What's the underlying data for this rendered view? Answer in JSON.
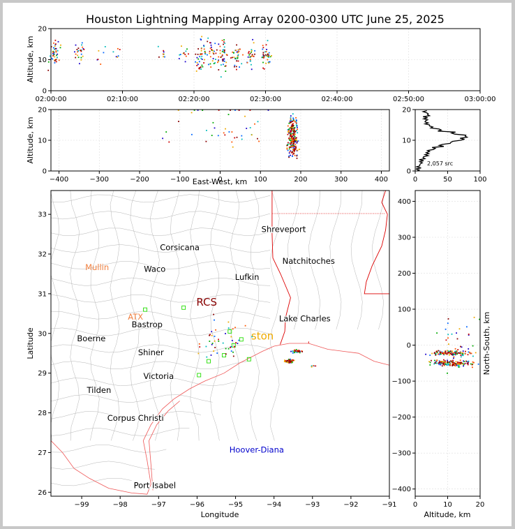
{
  "title": "Houston Lightning Mapping Array 0200-0300 UTC June 25, 2025",
  "colors": {
    "axis": "#000000",
    "grid": "#dddddd",
    "state_border": "#dd0000",
    "county": "#b4b4b4",
    "coast": "#ee5555",
    "site": "#22dd00",
    "series": [
      "#1a00cc",
      "#0066ff",
      "#00bbbb",
      "#00aa00",
      "#eeaa00",
      "#ff5500",
      "#cc0000",
      "#880000"
    ]
  },
  "chart_data": [
    {
      "id": "time_altitude",
      "type": "scatter",
      "ylabel": "Altitude, km",
      "ylim": [
        0,
        20
      ],
      "yticks": [
        "0",
        "10",
        "20"
      ],
      "xticks": [
        "02:00:00",
        "02:10:00",
        "02:20:00",
        "02:30:00",
        "02:40:00",
        "02:50:00",
        "03:00:00"
      ],
      "xlim_minutes": [
        0,
        60
      ],
      "clusters": [
        {
          "t": 0.5,
          "alt": 12,
          "spread": 1.5,
          "n": 40
        },
        {
          "t": 4,
          "alt": 12,
          "spread": 1.0,
          "n": 25
        },
        {
          "t": 7,
          "alt": 12,
          "spread": 1.0,
          "n": 6
        },
        {
          "t": 9,
          "alt": 12,
          "spread": 1.0,
          "n": 6
        },
        {
          "t": 15.5,
          "alt": 12,
          "spread": 1.0,
          "n": 8
        },
        {
          "t": 18.5,
          "alt": 12,
          "spread": 1.5,
          "n": 12
        },
        {
          "t": 21,
          "alt": 11,
          "spread": 2.0,
          "n": 40
        },
        {
          "t": 22.5,
          "alt": 12,
          "spread": 1.5,
          "n": 30
        },
        {
          "t": 24,
          "alt": 11,
          "spread": 2.0,
          "n": 40
        },
        {
          "t": 26,
          "alt": 11,
          "spread": 1.5,
          "n": 35
        },
        {
          "t": 28,
          "alt": 11,
          "spread": 1.5,
          "n": 25
        },
        {
          "t": 30,
          "alt": 11,
          "spread": 1.5,
          "n": 40
        }
      ]
    },
    {
      "id": "eastwest_altitude",
      "type": "scatter",
      "xlabel": "East-West, km",
      "ylabel": "Altitude, km",
      "xlim": [
        -420,
        420
      ],
      "ylim": [
        0,
        20
      ],
      "xticks": [
        "−400",
        "−300",
        "−200",
        "−100",
        "0",
        "100",
        "200",
        "300",
        "400"
      ],
      "yticks": [
        "0",
        "10",
        "20"
      ],
      "clusters": [
        {
          "x": 180,
          "alt": 11,
          "sx": 6,
          "salt": 3,
          "n": 260
        },
        {
          "x": 0,
          "alt": 15,
          "sx": 70,
          "salt": 4,
          "n": 45
        }
      ]
    },
    {
      "id": "altitude_histogram",
      "type": "line",
      "xlim": [
        0,
        100
      ],
      "ylim": [
        0,
        20
      ],
      "xticks": [
        "0",
        "50",
        "100"
      ],
      "yticks": [
        "0",
        "10",
        "20"
      ],
      "annotation": "2,057 src",
      "alt": [
        0.5,
        1.5,
        2.5,
        3.5,
        4.5,
        5.5,
        6.5,
        7.5,
        8.5,
        9.5,
        10.5,
        11.5,
        12.5,
        13.5,
        14.5,
        15.5,
        16.5,
        17.5,
        18.5,
        19.5
      ],
      "count": [
        3,
        5,
        8,
        9,
        13,
        17,
        20,
        28,
        40,
        55,
        72,
        78,
        58,
        38,
        24,
        18,
        16,
        15,
        20,
        14
      ]
    },
    {
      "id": "plan_view",
      "type": "scatter",
      "xlabel": "Longitude",
      "ylabel": "Latitude",
      "xlim": [
        -99.8,
        -91
      ],
      "ylim": [
        25.9,
        33.6
      ],
      "xticks": [
        "−99",
        "−98",
        "−97",
        "−96",
        "−95",
        "−94",
        "−93",
        "−92",
        "−91"
      ],
      "yticks": [
        "26",
        "27",
        "28",
        "29",
        "30",
        "31",
        "32",
        "33"
      ],
      "cities": [
        {
          "name": "Shreveport",
          "lon": -93.75,
          "lat": 32.55
        },
        {
          "name": "Corsicana",
          "lon": -96.45,
          "lat": 32.1
        },
        {
          "name": "Waco",
          "lon": -97.1,
          "lat": 31.55
        },
        {
          "name": "Natchitoches",
          "lon": -93.1,
          "lat": 31.75
        },
        {
          "name": "Lufkin",
          "lon": -94.7,
          "lat": 31.35
        },
        {
          "name": "Bastrop",
          "lon": -97.3,
          "lat": 30.15
        },
        {
          "name": "Lake Charles",
          "lon": -93.2,
          "lat": 30.3
        },
        {
          "name": "Boerne",
          "lon": -98.75,
          "lat": 29.8
        },
        {
          "name": "Shiner",
          "lon": -97.2,
          "lat": 29.45
        },
        {
          "name": "Victoria",
          "lon": -97.0,
          "lat": 28.85
        },
        {
          "name": "Tilden",
          "lon": -98.55,
          "lat": 28.5
        },
        {
          "name": "Corpus Christi",
          "lon": -97.6,
          "lat": 27.8
        },
        {
          "name": "Port Isabel",
          "lon": -97.1,
          "lat": 26.1
        }
      ],
      "radars": [
        {
          "name": "Mullin",
          "lon": -98.6,
          "lat": 31.6,
          "color": "#f08040"
        },
        {
          "name": "ATX",
          "lon": -97.6,
          "lat": 30.35,
          "color": "#f08040"
        }
      ],
      "radar_big": [
        {
          "name": "RCS",
          "lon": -95.75,
          "lat": 30.7,
          "color": "#880000"
        },
        {
          "name": "ston",
          "lon": -94.3,
          "lat": 29.85,
          "color": "#eeaa00"
        }
      ],
      "offshore": {
        "name": "Hoover-Diana",
        "lon": -94.45,
        "lat": 27.0,
        "color": "#0000cc"
      },
      "clusters": [
        {
          "lon": -93.6,
          "lat": 29.3,
          "slon": 0.06,
          "slat": 0.025,
          "n": 60
        },
        {
          "lon": -93.4,
          "lat": 29.55,
          "slon": 0.08,
          "slat": 0.02,
          "n": 35
        },
        {
          "lon": -95.4,
          "lat": 29.8,
          "slon": 0.35,
          "slat": 0.25,
          "n": 45
        },
        {
          "lon": -93.0,
          "lat": 29.18,
          "slon": 0.03,
          "slat": 0.01,
          "n": 6
        }
      ]
    },
    {
      "id": "altitude_northsouth",
      "type": "scatter",
      "xlabel": "Altitude, km",
      "ylabel": "North-South, km",
      "xlim": [
        0,
        20
      ],
      "ylim": [
        -420,
        430
      ],
      "xticks": [
        "0",
        "10",
        "20"
      ],
      "yticks": [
        "−400",
        "−300",
        "−200",
        "−100",
        "0",
        "100",
        "200",
        "300",
        "400"
      ],
      "clusters": [
        {
          "alt": 11,
          "y": -50,
          "salt": 3,
          "sy": 4,
          "n": 160
        },
        {
          "alt": 11,
          "y": -22,
          "salt": 3,
          "sy": 3,
          "n": 110
        },
        {
          "alt": 15,
          "y": 10,
          "salt": 4,
          "sy": 35,
          "n": 35
        }
      ]
    }
  ]
}
